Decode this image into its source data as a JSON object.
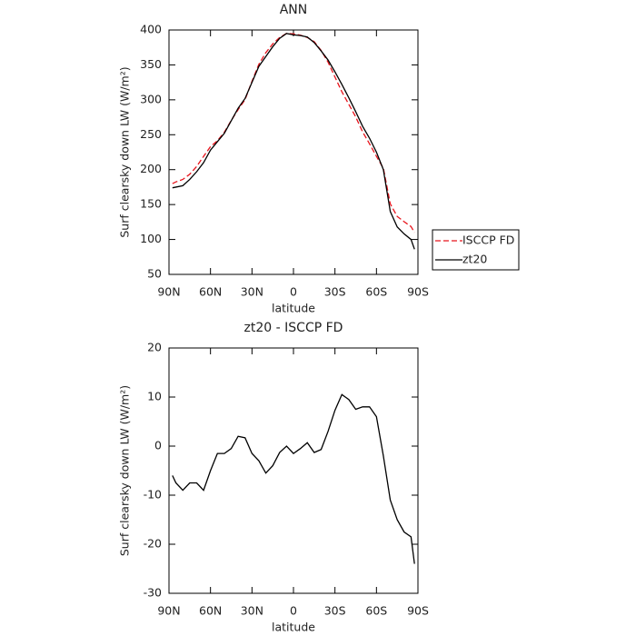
{
  "chart_data": [
    {
      "type": "line",
      "title": "ANN",
      "xlabel": "latitude",
      "ylabel": "Surf clearsky down LW (W/m²)",
      "x": [
        87.5,
        85,
        80,
        75,
        70,
        65,
        60,
        55,
        50,
        45,
        40,
        35,
        30,
        25,
        20,
        15,
        10,
        5,
        0,
        -5,
        -10,
        -15,
        -20,
        -25,
        -30,
        -35,
        -40,
        -45,
        -50,
        -55,
        -60,
        -65,
        -70,
        -75,
        -80,
        -85,
        -87.5
      ],
      "series": [
        {
          "name": "ISCCP FD",
          "color": "#e8141c",
          "dash": true,
          "values": [
            180,
            182.5,
            186,
            193.5,
            204.5,
            219,
            233,
            241.5,
            253.5,
            270.5,
            286,
            300.3,
            326.5,
            351,
            367.5,
            380,
            389.3,
            395,
            394.5,
            392.5,
            389.3,
            383.3,
            370.7,
            354,
            332.7,
            311.5,
            293.5,
            275.5,
            254,
            237,
            219,
            202,
            151,
            133,
            125.5,
            118.5,
            110
          ]
        },
        {
          "name": "zt20",
          "color": "#000000",
          "dash": false,
          "values": [
            174,
            175,
            177,
            186,
            197,
            210,
            228,
            240,
            252,
            270,
            288,
            302,
            325,
            348,
            362,
            376,
            388,
            395,
            393,
            392,
            390,
            382,
            370,
            357,
            340,
            322,
            303,
            283,
            262,
            245,
            225,
            200,
            140,
            118,
            108,
            100,
            86
          ]
        }
      ],
      "xlim": [
        90,
        -90
      ],
      "xticks": [
        {
          "value": 90,
          "label": "90N"
        },
        {
          "value": 60,
          "label": "60N"
        },
        {
          "value": 30,
          "label": "30N"
        },
        0,
        {
          "value": -30,
          "label": "30S"
        },
        {
          "value": -60,
          "label": "60S"
        },
        {
          "value": -90,
          "label": "90S"
        }
      ],
      "ylim": [
        50,
        400
      ],
      "yticks": [
        50,
        100,
        150,
        200,
        250,
        300,
        350,
        400
      ],
      "legend": "outside-right"
    },
    {
      "type": "line",
      "title": "zt20 - ISCCP FD",
      "xlabel": "latitude",
      "ylabel": "Surf clearsky down LW (W/m²)",
      "x": [
        87.5,
        85,
        80,
        75,
        70,
        65,
        60,
        55,
        50,
        45,
        40,
        35,
        30,
        25,
        20,
        15,
        10,
        5,
        0,
        -5,
        -10,
        -15,
        -20,
        -25,
        -30,
        -35,
        -40,
        -45,
        -50,
        -55,
        -60,
        -65,
        -70,
        -75,
        -80,
        -85,
        -87.5
      ],
      "series": [
        {
          "color": "#000000",
          "dash": false,
          "values": [
            -6,
            -7.5,
            -9,
            -7.5,
            -7.5,
            -9,
            -5,
            -1.5,
            -1.5,
            -0.5,
            2,
            1.7,
            -1.5,
            -3,
            -5.5,
            -4,
            -1.3,
            0,
            -1.5,
            -0.5,
            0.7,
            -1.3,
            -0.7,
            3,
            7.3,
            10.5,
            9.5,
            7.5,
            8,
            8,
            6,
            -2,
            -11,
            -15,
            -17.5,
            -18.5,
            -24
          ]
        }
      ],
      "xlim": [
        90,
        -90
      ],
      "xticks": [
        {
          "value": 90,
          "label": "90N"
        },
        {
          "value": 60,
          "label": "60N"
        },
        {
          "value": 30,
          "label": "30N"
        },
        0,
        {
          "value": -30,
          "label": "30S"
        },
        {
          "value": -60,
          "label": "60S"
        },
        {
          "value": -90,
          "label": "90S"
        }
      ],
      "ylim": [
        -30,
        20
      ],
      "yticks": [
        -30,
        -20,
        -10,
        0,
        10,
        20
      ]
    }
  ]
}
